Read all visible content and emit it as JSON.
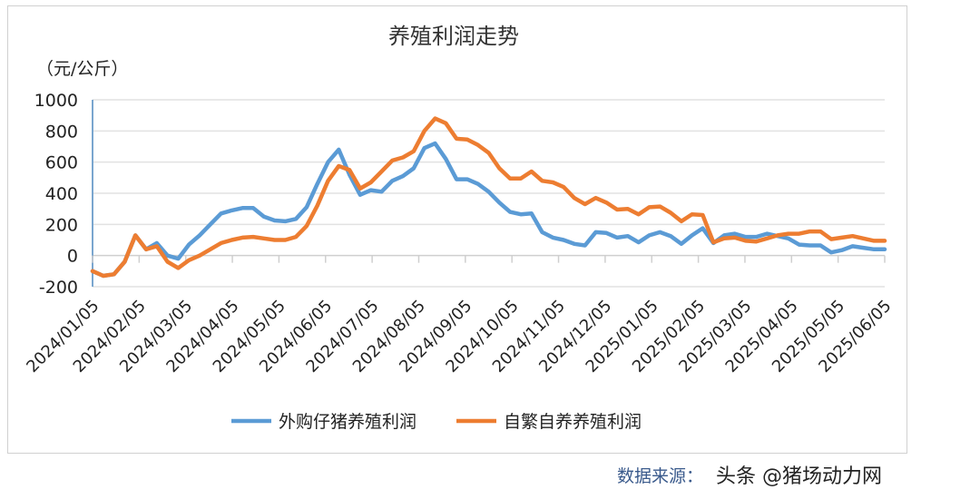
{
  "chart_data": {
    "type": "line",
    "title": "养殖利润走势",
    "ylabel": "（元/公斤）",
    "xlabel": "",
    "ylim": [
      -200,
      1000
    ],
    "yticks": [
      -200,
      0,
      200,
      400,
      600,
      800,
      1000
    ],
    "grid": true,
    "legend_position": "bottom",
    "x_tick_labels": [
      "2024/01/05",
      "2024/02/05",
      "2024/03/05",
      "2024/04/05",
      "2024/05/05",
      "2024/06/05",
      "2024/07/05",
      "2024/08/05",
      "2024/09/05",
      "2024/10/05",
      "2024/11/05",
      "2024/12/05",
      "2025/01/05",
      "2025/02/05",
      "2025/03/05",
      "2025/04/05",
      "2025/05/05",
      "2025/06/05"
    ],
    "x_note": "weekly points from 2024/01/05 to 2025/06/05",
    "series": [
      {
        "name": "外购仔猪养殖利润",
        "color": "#5b9bd5",
        "values": [
          -100,
          -130,
          -120,
          -40,
          130,
          40,
          80,
          0,
          -20,
          70,
          130,
          200,
          270,
          290,
          305,
          305,
          250,
          225,
          220,
          235,
          310,
          460,
          600,
          680,
          520,
          390,
          420,
          410,
          480,
          510,
          560,
          690,
          720,
          620,
          490,
          490,
          460,
          410,
          340,
          280,
          265,
          270,
          150,
          115,
          100,
          75,
          65,
          150,
          145,
          115,
          125,
          85,
          130,
          150,
          125,
          75,
          130,
          175,
          80,
          130,
          140,
          120,
          120,
          140,
          125,
          110,
          70,
          65,
          65,
          20,
          35,
          60,
          50,
          40,
          40
        ]
      },
      {
        "name": "自繁自养养殖利润",
        "color": "#ed7d31",
        "values": [
          -100,
          -130,
          -120,
          -40,
          130,
          40,
          60,
          -40,
          -80,
          -30,
          0,
          40,
          80,
          100,
          115,
          120,
          110,
          100,
          100,
          120,
          190,
          320,
          480,
          575,
          550,
          430,
          470,
          540,
          610,
          630,
          670,
          800,
          880,
          850,
          750,
          745,
          710,
          660,
          560,
          495,
          495,
          540,
          480,
          470,
          440,
          370,
          330,
          370,
          340,
          295,
          300,
          265,
          310,
          315,
          275,
          220,
          265,
          260,
          85,
          110,
          115,
          95,
          90,
          110,
          130,
          140,
          140,
          155,
          155,
          105,
          115,
          125,
          110,
          95,
          95
        ]
      }
    ]
  },
  "footer": {
    "source_label": "数据来源：",
    "watermark": "头条 @猪场动力网"
  }
}
